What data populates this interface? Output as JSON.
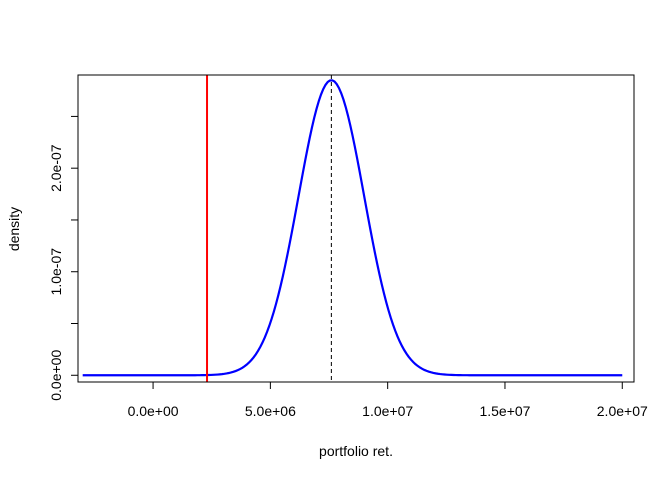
{
  "chart_data": {
    "type": "line",
    "title": "",
    "xlabel": "portfolio ret.",
    "ylabel": "density",
    "xlim": [
      -3200000,
      20500000
    ],
    "ylim": [
      -6.5e-09,
      2.9e-07
    ],
    "x_ticks": [
      0,
      5000000,
      10000000,
      15000000,
      20000000
    ],
    "x_tick_labels": [
      "0.0e+00",
      "5.0e+06",
      "1.0e+07",
      "1.5e+07",
      "2.0e+07"
    ],
    "y_ticks": [
      0,
      5e-08,
      1e-07,
      1.5e-07,
      2e-07,
      2.5e-07
    ],
    "y_tick_labels": [
      "0.0e+00",
      "",
      "1.0e-07",
      "",
      "2.0e-07",
      ""
    ],
    "grid": false,
    "series": [
      {
        "kind": "normal-density",
        "color": "#0000ff",
        "mean": 7600000,
        "sd": 1400000,
        "x_range": [
          -3000000,
          20000000
        ]
      }
    ],
    "vlines": [
      {
        "x": 2300000,
        "color": "#ff0000",
        "style": "solid"
      },
      {
        "x": 7600000,
        "color": "#000000",
        "style": "dashed"
      }
    ]
  }
}
